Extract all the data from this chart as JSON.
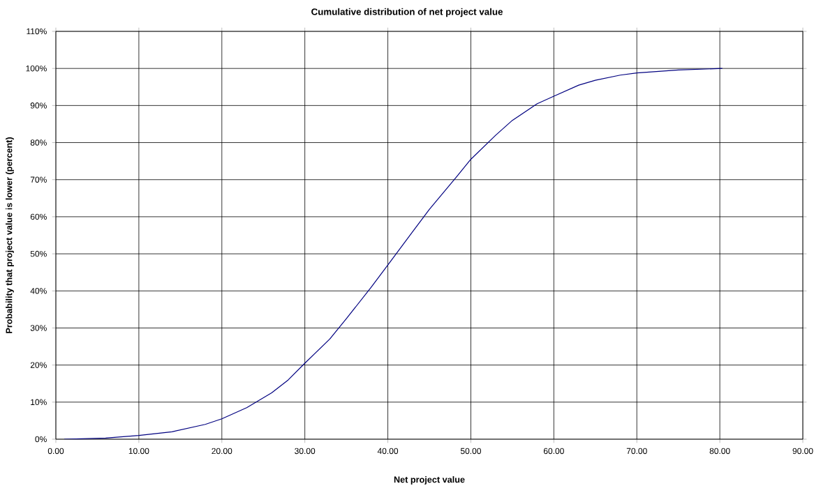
{
  "chart_data": {
    "type": "line",
    "title": "Cumulative distribution of net project value",
    "xlabel": "Net project value",
    "ylabel": "Probability  that project value is lower (percent)",
    "x": [
      1,
      6,
      10,
      14,
      18,
      20,
      23,
      26,
      28,
      30,
      33,
      35,
      38,
      40,
      43,
      45,
      48,
      50,
      53,
      55,
      58,
      60,
      63,
      65,
      68,
      70,
      75,
      80.3
    ],
    "series": [
      {
        "color": "#000080",
        "values": [
          0,
          0.3,
          1,
          2,
          4,
          5.5,
          8.5,
          12.5,
          16,
          20.5,
          27,
          32.5,
          41,
          47,
          56,
          62,
          70,
          75.5,
          82,
          86,
          90.5,
          92.5,
          95.5,
          96.8,
          98.2,
          98.8,
          99.6,
          100
        ]
      }
    ],
    "xlim": [
      0,
      90
    ],
    "ylim": [
      0,
      110
    ],
    "xticks": [
      {
        "value": 0,
        "label": "0.00"
      },
      {
        "value": 10,
        "label": "10.00"
      },
      {
        "value": 20,
        "label": "20.00"
      },
      {
        "value": 30,
        "label": "30.00"
      },
      {
        "value": 40,
        "label": "40.00"
      },
      {
        "value": 50,
        "label": "50.00"
      },
      {
        "value": 60,
        "label": "60.00"
      },
      {
        "value": 70,
        "label": "70.00"
      },
      {
        "value": 80,
        "label": "80.00"
      },
      {
        "value": 90,
        "label": "90.00"
      }
    ],
    "yticks": [
      {
        "value": 0,
        "label": "0%"
      },
      {
        "value": 10,
        "label": "10%"
      },
      {
        "value": 20,
        "label": "20%"
      },
      {
        "value": 30,
        "label": "30%"
      },
      {
        "value": 40,
        "label": "40%"
      },
      {
        "value": 50,
        "label": "50%"
      },
      {
        "value": 60,
        "label": "60%"
      },
      {
        "value": 70,
        "label": "70%"
      },
      {
        "value": 80,
        "label": "80%"
      },
      {
        "value": 90,
        "label": "90%"
      },
      {
        "value": 100,
        "label": "100%"
      },
      {
        "value": 110,
        "label": "110%"
      }
    ],
    "grid": true,
    "marker": "none",
    "line_style": "solid"
  }
}
